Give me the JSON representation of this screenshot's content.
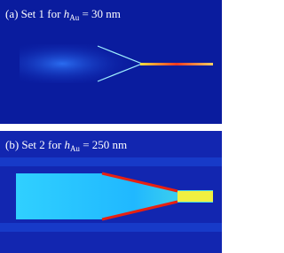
{
  "panels": [
    {
      "prefix": "(a) Set 1 for",
      "symbol": "h",
      "subscript": "Au",
      "suffix": "= 30 nm"
    },
    {
      "prefix": "(b) Set 2 for",
      "symbol": "h",
      "subscript": "Au",
      "suffix": "= 250 nm"
    }
  ]
}
